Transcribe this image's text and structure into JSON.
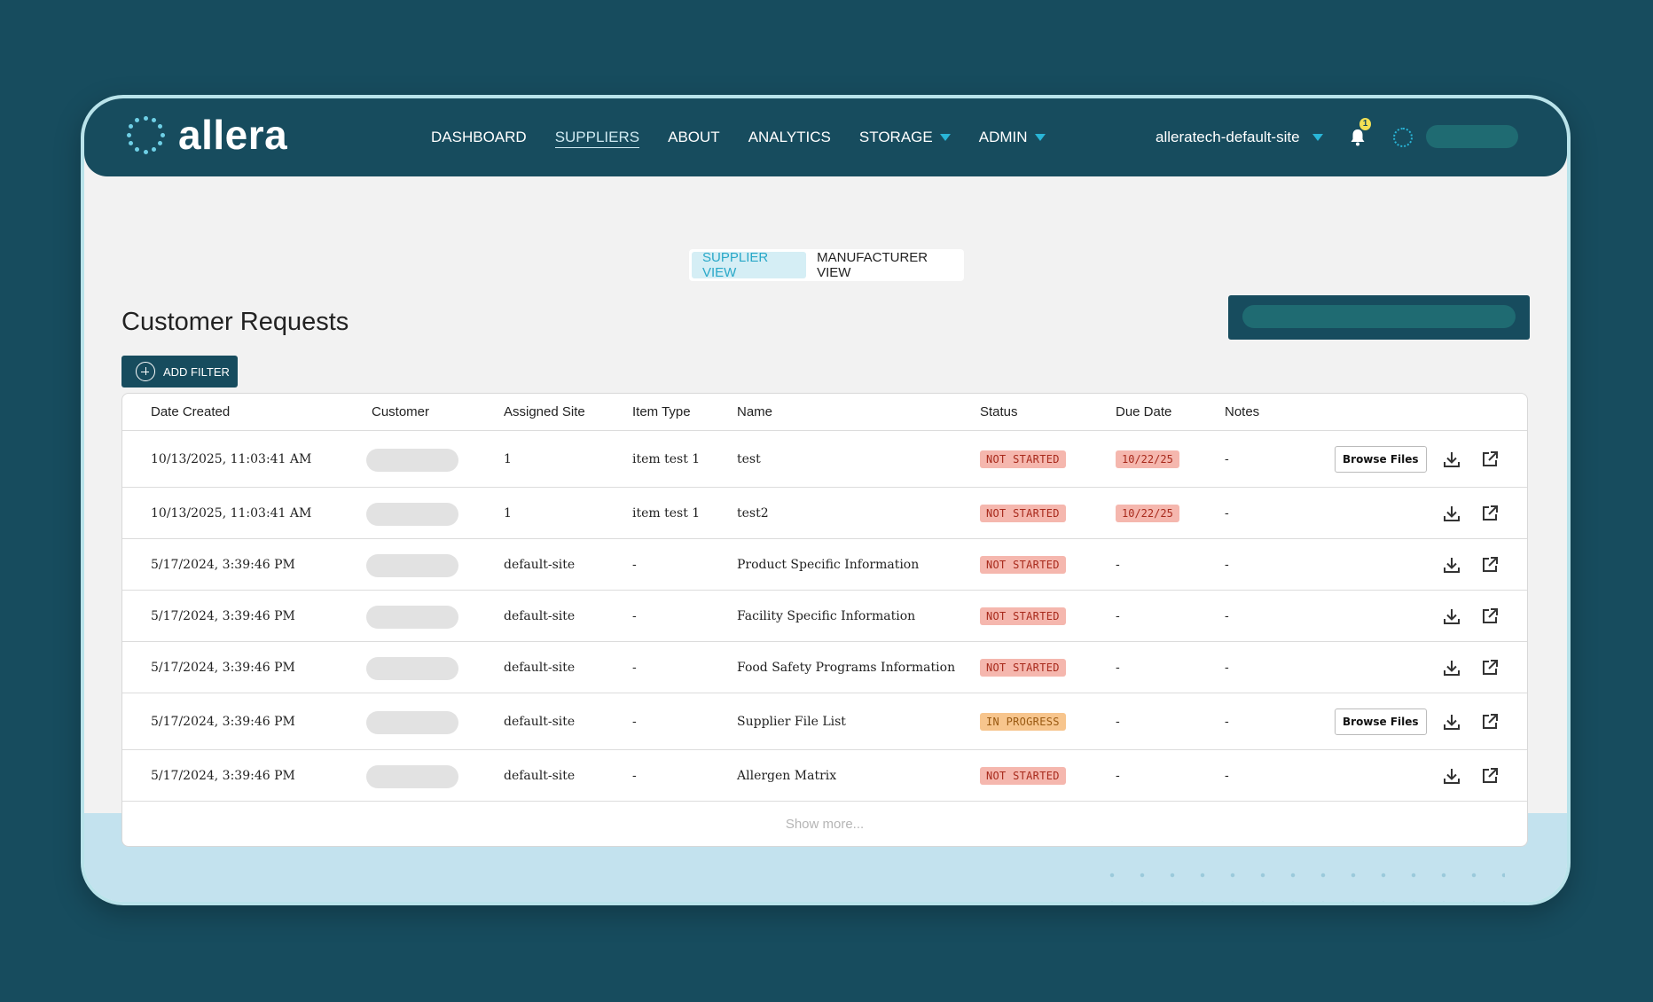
{
  "brand": {
    "name": "allera"
  },
  "nav": {
    "items": [
      {
        "label": "DASHBOARD",
        "active": false,
        "dropdown": false
      },
      {
        "label": "SUPPLIERS",
        "active": true,
        "dropdown": false
      },
      {
        "label": "ABOUT",
        "active": false,
        "dropdown": false
      },
      {
        "label": "ANALYTICS",
        "active": false,
        "dropdown": false
      },
      {
        "label": "STORAGE",
        "active": false,
        "dropdown": true
      },
      {
        "label": "ADMIN",
        "active": false,
        "dropdown": true
      }
    ],
    "site": "alleratech-default-site",
    "notification_count": "1"
  },
  "view_toggle": {
    "supplier": "SUPPLIER VIEW",
    "manufacturer": "MANUFACTURER VIEW",
    "active": "supplier"
  },
  "page": {
    "title": "Customer Requests",
    "add_filter": "ADD FILTER",
    "show_more": "Show more..."
  },
  "table": {
    "columns": [
      "Date Created",
      "Customer",
      "Assigned Site",
      "Item Type",
      "Name",
      "Status",
      "Due Date",
      "Notes"
    ],
    "rows": [
      {
        "date": "10/13/2025, 11:03:41 AM",
        "site": "1",
        "item_type": "item test 1",
        "name": "test",
        "status": "NOT STARTED",
        "due": "10/22/25",
        "notes": "-",
        "browse": "Browse Files"
      },
      {
        "date": "10/13/2025, 11:03:41 AM",
        "site": "1",
        "item_type": "item test 1",
        "name": "test2",
        "status": "NOT STARTED",
        "due": "10/22/25",
        "notes": "-",
        "browse": ""
      },
      {
        "date": "5/17/2024, 3:39:46 PM",
        "site": "default-site",
        "item_type": "-",
        "name": "Product Specific Information",
        "status": "NOT STARTED",
        "due": "-",
        "notes": "-",
        "browse": ""
      },
      {
        "date": "5/17/2024, 3:39:46 PM",
        "site": "default-site",
        "item_type": "-",
        "name": "Facility Specific Information",
        "status": "NOT STARTED",
        "due": "-",
        "notes": "-",
        "browse": ""
      },
      {
        "date": "5/17/2024, 3:39:46 PM",
        "site": "default-site",
        "item_type": "-",
        "name": "Food Safety Programs Information",
        "status": "NOT STARTED",
        "due": "-",
        "notes": "-",
        "browse": ""
      },
      {
        "date": "5/17/2024, 3:39:46 PM",
        "site": "default-site",
        "item_type": "-",
        "name": "Supplier File List",
        "status": "IN PROGRESS",
        "due": "-",
        "notes": "-",
        "browse": "Browse Files"
      },
      {
        "date": "5/17/2024, 3:39:46 PM",
        "site": "default-site",
        "item_type": "-",
        "name": "Allergen Matrix",
        "status": "NOT STARTED",
        "due": "-",
        "notes": "-",
        "browse": ""
      }
    ]
  },
  "icons": {
    "download": "download-icon",
    "external": "external-link-icon",
    "bell": "bell-icon"
  }
}
